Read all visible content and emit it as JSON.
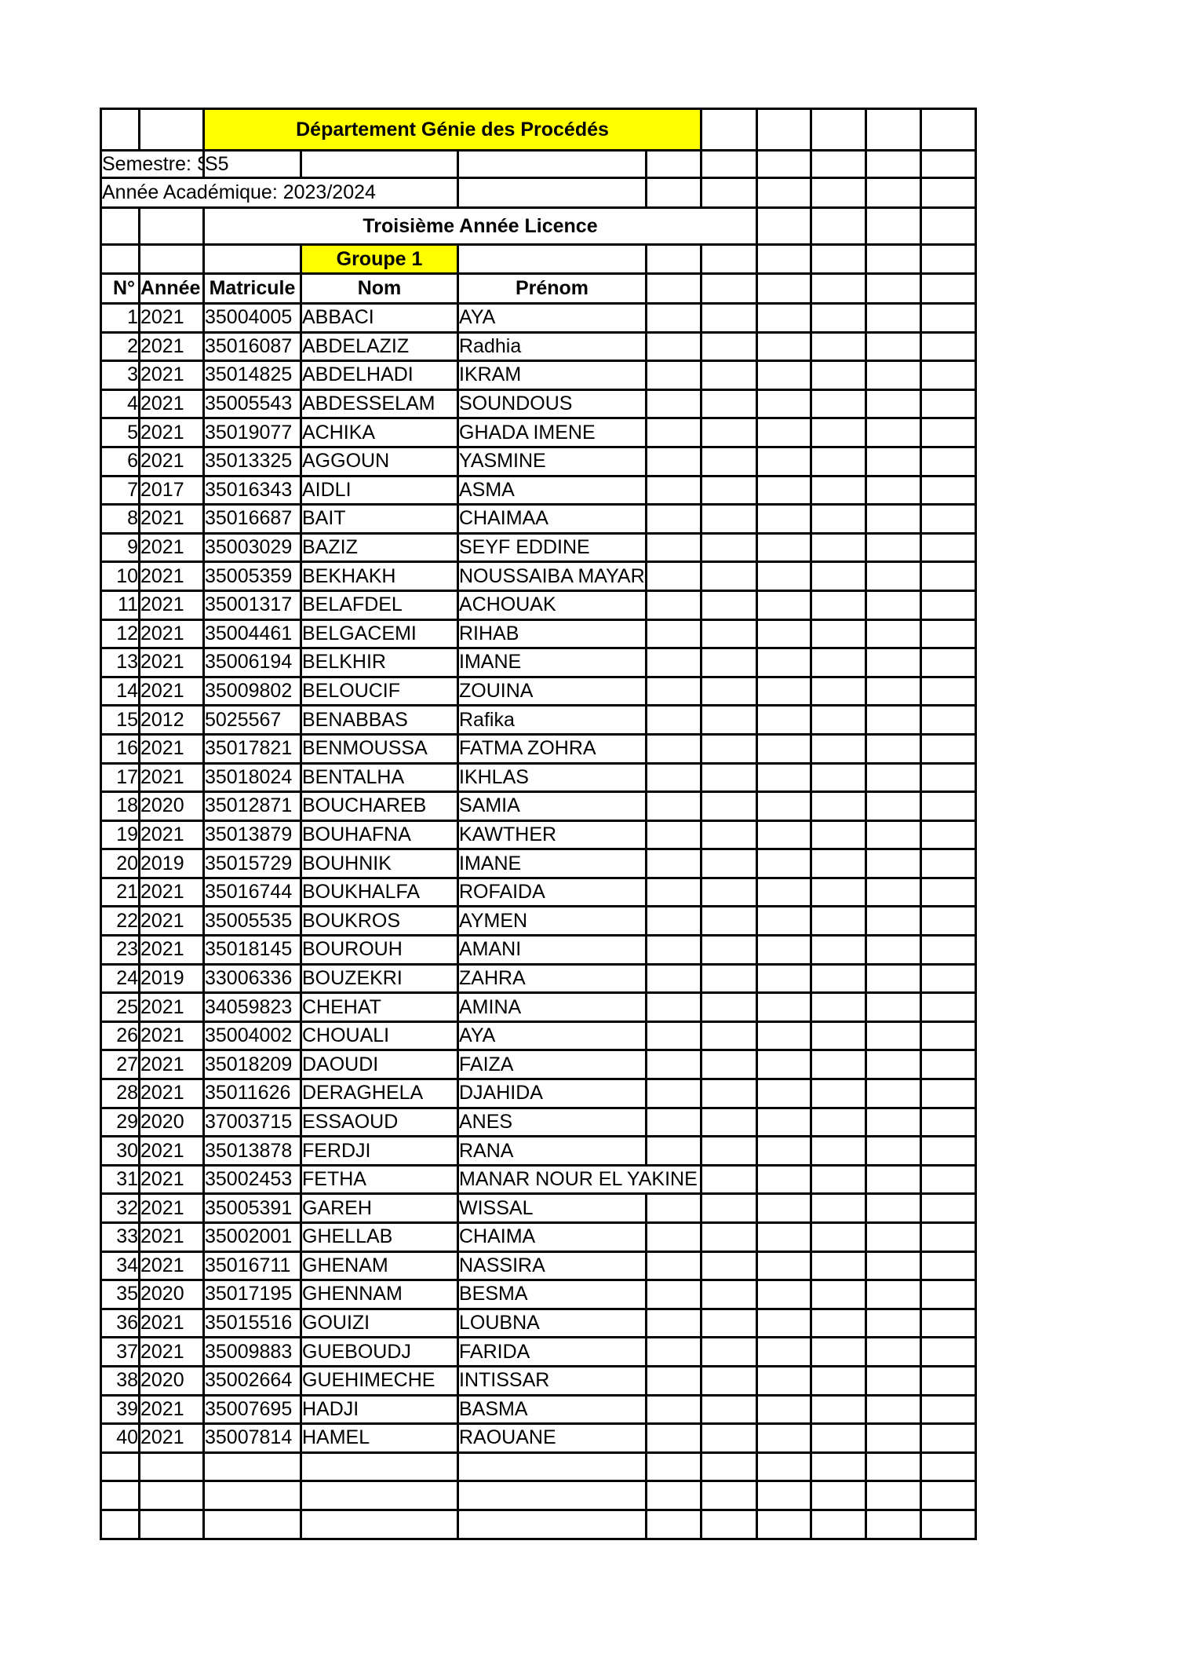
{
  "header": {
    "department_title": "Département Génie des Procédés",
    "semestre_text": "Semestre: S5",
    "semestre_value": "S5",
    "academic_year": "Année Académique: 2023/2024",
    "level_title": "Troisième Année Licence",
    "group_title": "Groupe 1"
  },
  "colors": {
    "highlight_yellow": "#FFFF00",
    "title_red": "#FF0000",
    "grid_black": "#000000"
  },
  "table": {
    "columns": [
      "N°",
      "Année Bac",
      "Matricule",
      "Nom",
      "Prénom"
    ],
    "extra_empty_columns": 6,
    "trailing_empty_rows": 3,
    "prenom_overflow_row_no": 31,
    "rows": [
      [
        "1",
        "2021",
        "35004005",
        "ABBACI",
        "AYA"
      ],
      [
        "2",
        "2021",
        "35016087",
        "ABDELAZIZ",
        "Radhia"
      ],
      [
        "3",
        "2021",
        "35014825",
        "ABDELHADI",
        "IKRAM"
      ],
      [
        "4",
        "2021",
        "35005543",
        "ABDESSELAM",
        "SOUNDOUS"
      ],
      [
        "5",
        "2021",
        "35019077",
        "ACHIKA",
        "GHADA IMENE"
      ],
      [
        "6",
        "2021",
        "35013325",
        "AGGOUN",
        "YASMINE"
      ],
      [
        "7",
        "2017",
        "35016343",
        "AIDLI",
        "ASMA"
      ],
      [
        "8",
        "2021",
        "35016687",
        "BAIT",
        "CHAIMAA"
      ],
      [
        "9",
        "2021",
        "35003029",
        "BAZIZ",
        "SEYF EDDINE"
      ],
      [
        "10",
        "2021",
        "35005359",
        "BEKHAKH",
        "NOUSSAIBA MAYAR"
      ],
      [
        "11",
        "2021",
        "35001317",
        "BELAFDEL",
        "ACHOUAK"
      ],
      [
        "12",
        "2021",
        "35004461",
        "BELGACEMI",
        "RIHAB"
      ],
      [
        "13",
        "2021",
        "35006194",
        "BELKHIR",
        "IMANE"
      ],
      [
        "14",
        "2021",
        "35009802",
        "BELOUCIF",
        "ZOUINA"
      ],
      [
        "15",
        "2012",
        "5025567",
        "BENABBAS",
        "Rafika"
      ],
      [
        "16",
        "2021",
        "35017821",
        "BENMOUSSA",
        "FATMA ZOHRA"
      ],
      [
        "17",
        "2021",
        "35018024",
        "BENTALHA",
        "IKHLAS"
      ],
      [
        "18",
        "2020",
        "35012871",
        "BOUCHAREB",
        "SAMIA"
      ],
      [
        "19",
        "2021",
        "35013879",
        "BOUHAFNA",
        "KAWTHER"
      ],
      [
        "20",
        "2019",
        "35015729",
        "BOUHNIK",
        "IMANE"
      ],
      [
        "21",
        "2021",
        "35016744",
        "BOUKHALFA",
        "ROFAIDA"
      ],
      [
        "22",
        "2021",
        "35005535",
        "BOUKROS",
        "AYMEN"
      ],
      [
        "23",
        "2021",
        "35018145",
        "BOUROUH",
        "AMANI"
      ],
      [
        "24",
        "2019",
        "33006336",
        "BOUZEKRI",
        "ZAHRA"
      ],
      [
        "25",
        "2021",
        "34059823",
        "CHEHAT",
        "AMINA"
      ],
      [
        "26",
        "2021",
        "35004002",
        "CHOUALI",
        "AYA"
      ],
      [
        "27",
        "2021",
        "35018209",
        "DAOUDI",
        "FAIZA"
      ],
      [
        "28",
        "2021",
        "35011626",
        "DERAGHELA",
        "DJAHIDA"
      ],
      [
        "29",
        "2020",
        "37003715",
        "ESSAOUD",
        "ANES"
      ],
      [
        "30",
        "2021",
        "35013878",
        "FERDJI",
        "RANA"
      ],
      [
        "31",
        "2021",
        "35002453",
        "FETHA",
        "MANAR NOUR EL YAKINE"
      ],
      [
        "32",
        "2021",
        "35005391",
        "GAREH",
        "WISSAL"
      ],
      [
        "33",
        "2021",
        "35002001",
        "GHELLAB",
        "CHAIMA"
      ],
      [
        "34",
        "2021",
        "35016711",
        "GHENAM",
        "NASSIRA"
      ],
      [
        "35",
        "2020",
        "35017195",
        "GHENNAM",
        "BESMA"
      ],
      [
        "36",
        "2021",
        "35015516",
        "GOUIZI",
        "LOUBNA"
      ],
      [
        "37",
        "2021",
        "35009883",
        "GUEBOUDJ",
        "FARIDA"
      ],
      [
        "38",
        "2020",
        "35002664",
        "GUEHIMECHE",
        "INTISSAR"
      ],
      [
        "39",
        "2021",
        "35007695",
        "HADJI",
        "BASMA"
      ],
      [
        "40",
        "2021",
        "35007814",
        "HAMEL",
        "RAOUANE"
      ]
    ]
  }
}
